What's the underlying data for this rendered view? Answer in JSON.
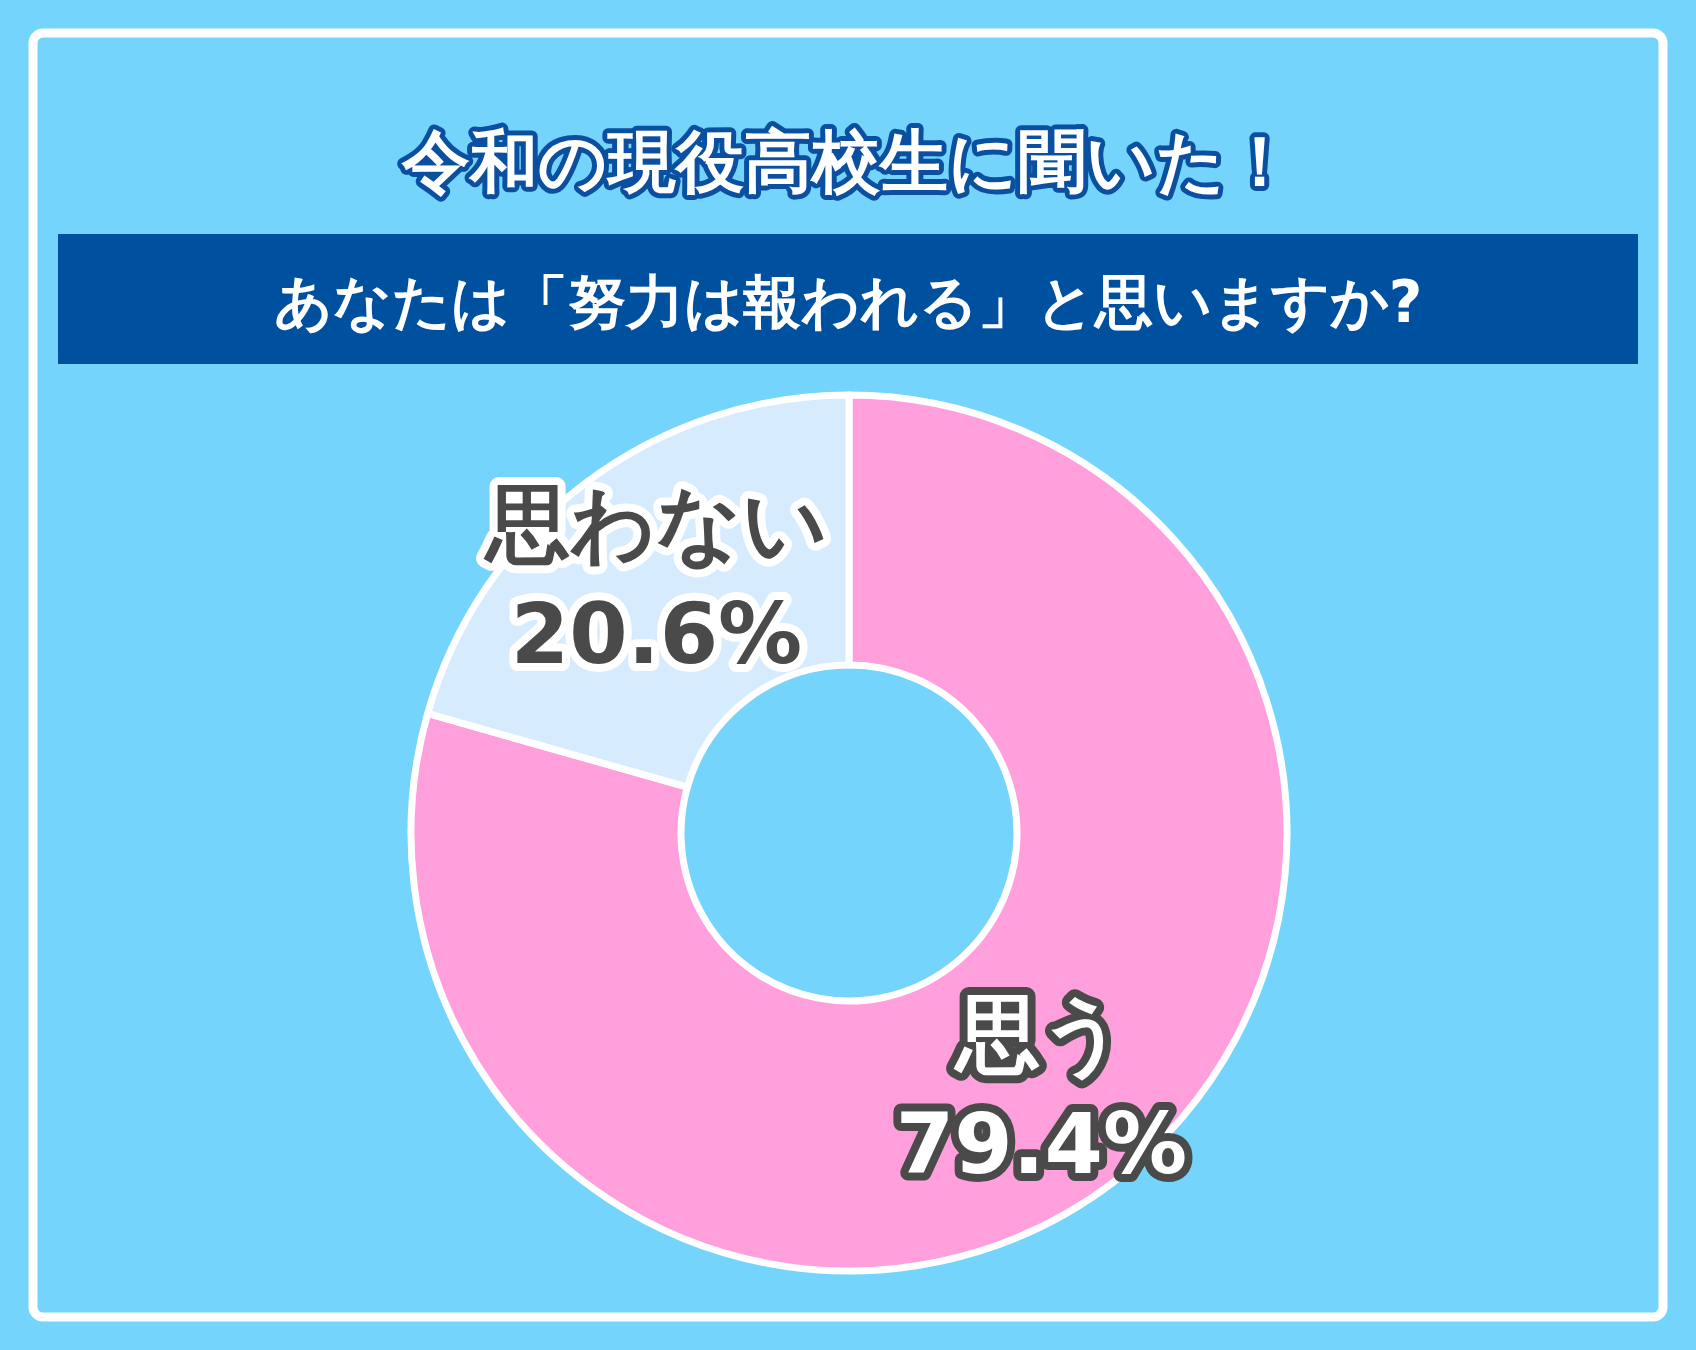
{
  "chart_data": {
    "type": "donut",
    "title": "令和の現役高校生に聞いた！",
    "subtitle": "あなたは「努力は報われる」と思いますか?",
    "categories": [
      "思う",
      "思わない"
    ],
    "values": [
      79.4,
      20.6
    ],
    "value_labels": [
      "79.4%",
      "20.6%"
    ],
    "colors": [
      "#ffa0dc",
      "#d6ebfd"
    ]
  }
}
